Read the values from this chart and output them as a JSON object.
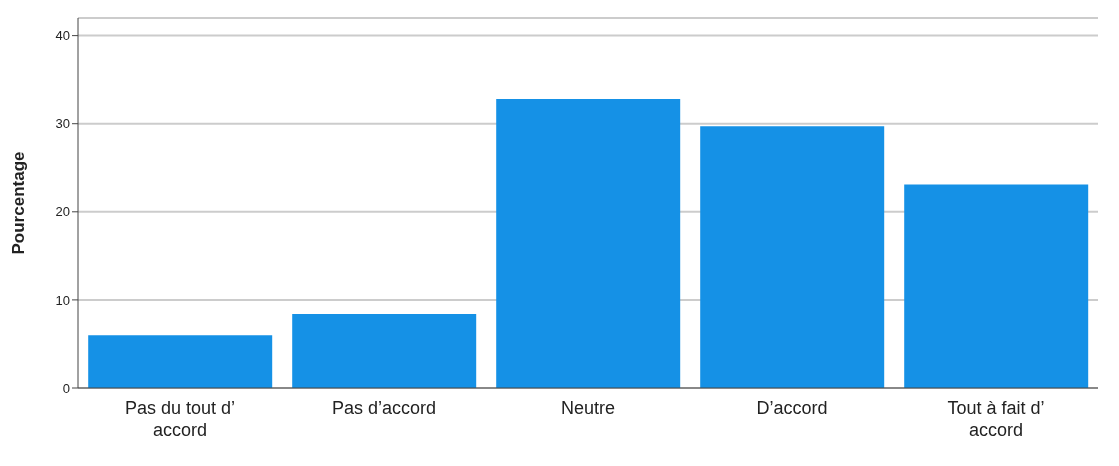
{
  "chart_data": {
    "type": "bar",
    "ylabel": "Pourcentage",
    "categories": [
      "Pas du tout d’ accord",
      "Pas d’accord",
      "Neutre",
      "D’accord",
      "Tout à fait d’ accord"
    ],
    "values": [
      6.0,
      8.4,
      32.8,
      29.7,
      23.1
    ],
    "color": "#1591e6",
    "ylim": [
      0,
      42
    ],
    "yticks": [
      0,
      10,
      20,
      30,
      40
    ],
    "grid": "y"
  }
}
